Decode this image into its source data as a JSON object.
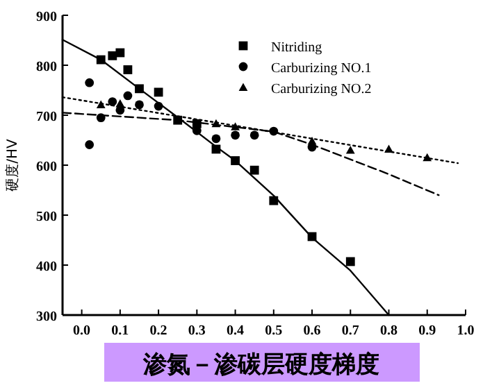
{
  "chart_data": {
    "type": "scatter",
    "title": "渗氮－渗碳层硬度梯度",
    "ylabel": "硬度/HV",
    "xlim": [
      -0.05,
      1.0
    ],
    "ylim": [
      300,
      900
    ],
    "xticks": [
      {
        "value": 0,
        "label": "0.0"
      },
      0.1,
      0.2,
      0.3,
      0.4,
      0.5,
      0.6,
      0.7,
      0.8,
      0.9,
      {
        "value": 1,
        "label": "1.0"
      }
    ],
    "yticks": [
      300,
      400,
      500,
      600,
      700,
      800,
      900
    ],
    "grid": false,
    "legend": "top right",
    "series": [
      {
        "name": "Nitriding",
        "color": "#000000",
        "marker": "square",
        "x": [
          0.05,
          0.08,
          0.1,
          0.12,
          0.15,
          0.2,
          0.25,
          0.3,
          0.35,
          0.4,
          0.45,
          0.5,
          0.6,
          0.7
        ],
        "values": [
          811,
          819,
          825,
          791,
          753,
          746,
          690,
          683,
          632,
          609,
          590,
          529,
          457,
          407
        ]
      },
      {
        "name": "Carburizing NO.1",
        "color": "#000000",
        "marker": "circle",
        "x": [
          0.02,
          0.02,
          0.05,
          0.08,
          0.1,
          0.12,
          0.15,
          0.2,
          0.3,
          0.35,
          0.4,
          0.45,
          0.5,
          0.6
        ],
        "values": [
          765,
          641,
          695,
          727,
          710,
          739,
          721,
          718,
          669,
          653,
          660,
          660,
          668,
          636
        ]
      },
      {
        "name": "Carburizing NO.2",
        "color": "#000000",
        "marker": "triangle",
        "x": [
          0.05,
          0.1,
          0.35,
          0.4,
          0.6,
          0.7,
          0.8,
          0.9
        ],
        "values": [
          721,
          723,
          683,
          677,
          648,
          630,
          632,
          615
        ]
      },
      {
        "type": "line",
        "color": "#000000",
        "line_style": "solid",
        "x": [
          -0.05,
          0.05,
          0.15,
          0.26,
          0.35,
          0.4,
          0.5,
          0.6,
          0.7,
          0.8
        ],
        "values": [
          851,
          811,
          753,
          690,
          637,
          609,
          539,
          455,
          389,
          300
        ]
      },
      {
        "type": "line",
        "color": "#000000",
        "line_style": "dashed",
        "x": [
          -0.05,
          0.25,
          0.5,
          0.6,
          0.79,
          0.93
        ],
        "values": [
          705,
          690,
          667,
          641,
          585,
          540
        ]
      },
      {
        "type": "line",
        "color": "#000000",
        "line_style": "dotted",
        "x": [
          -0.05,
          0.4,
          0.98
        ],
        "values": [
          736,
          679,
          604
        ]
      }
    ]
  }
}
